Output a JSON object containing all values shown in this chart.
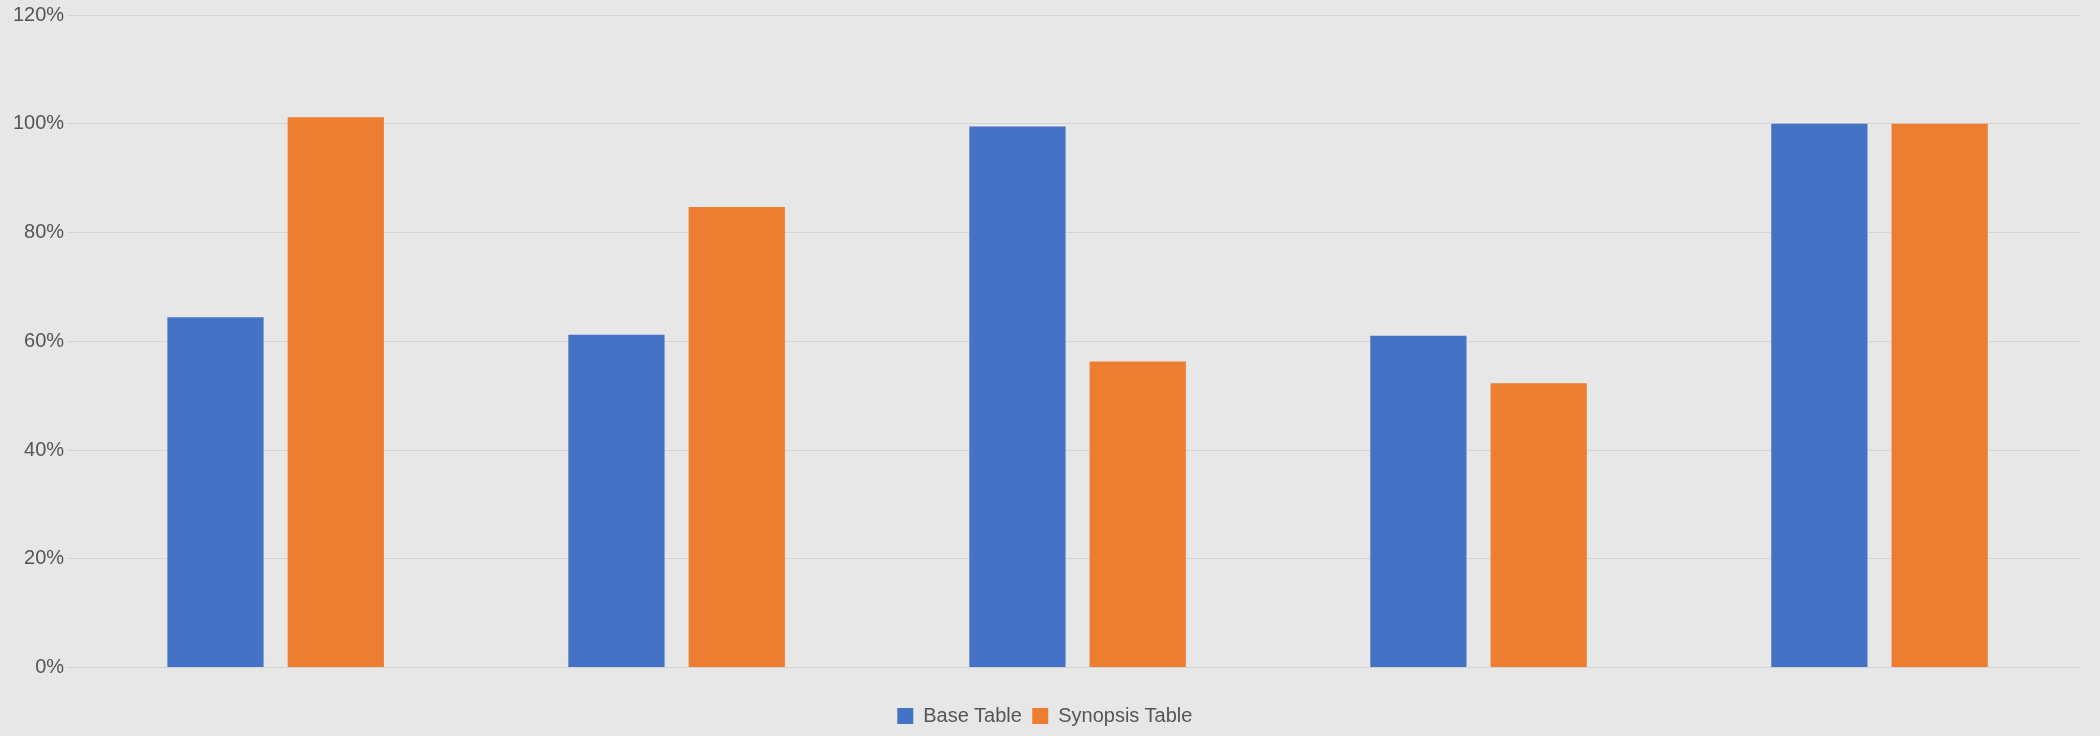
{
  "chart_data": {
    "type": "bar",
    "categories": [
      null,
      null,
      null,
      null,
      null
    ],
    "series": [
      {
        "name": "Base Table",
        "color": "#4472c4",
        "values": [
          64.4,
          61.2,
          99.5,
          61.0,
          100
        ]
      },
      {
        "name": "Synopsis Table",
        "color": "#ed7d31",
        "values": [
          101.2,
          84.7,
          56.3,
          52.3,
          100
        ]
      }
    ],
    "ylim": [
      0,
      120
    ],
    "yticks": [
      {
        "value": 0,
        "label": "0%"
      },
      {
        "value": 20,
        "label": "20%"
      },
      {
        "value": 40,
        "label": "40%"
      },
      {
        "value": 60,
        "label": "60%"
      },
      {
        "value": 80,
        "label": "80%"
      },
      {
        "value": 100,
        "label": "100%"
      },
      {
        "value": 120,
        "label": "120%"
      }
    ],
    "grid": "y",
    "legend": "bottom"
  }
}
